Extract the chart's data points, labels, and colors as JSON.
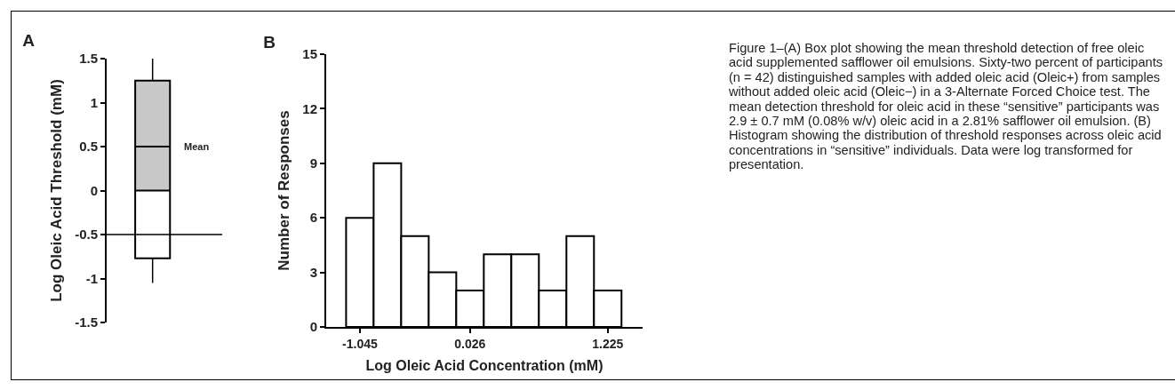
{
  "chart_data": [
    {
      "type": "box",
      "title": "A",
      "ylabel": "Log Oleic Acid Threshold (mM)",
      "categories": [
        null
      ],
      "series": [
        {
          "color": "#c8c8c8",
          "boxes": [
            {
              "low": -1.05,
              "q1": -0.77,
              "median": 0,
              "q3": 1.25,
              "high": 1.5,
              "mean": 0.5
            }
          ]
        }
      ],
      "ylim": [
        -1.5,
        1.5
      ],
      "yticks": [
        -1.5,
        -1,
        -0.5,
        0,
        0.5,
        1,
        1.5
      ],
      "ref_lines": [
        {
          "axis": "y",
          "value": -0.5
        }
      ],
      "annotations": [
        "Mean"
      ],
      "tick_labels": "y"
    },
    {
      "type": "bar",
      "title": "B",
      "xlabel": "Log Oleic Acid Concentration (mM)",
      "ylabel": "Number of Responses",
      "categories": [
        "-1.045",
        null,
        null,
        null,
        "0.026",
        null,
        null,
        null,
        null,
        "1.225"
      ],
      "values": [
        6,
        9,
        5,
        3,
        2,
        4,
        4,
        2,
        5,
        2
      ],
      "color": "#ffffff",
      "ylim": [
        0,
        15
      ],
      "yticks": [
        0,
        3,
        6,
        9,
        12,
        15
      ],
      "annotations": [
        "Figure 1–(A) Box plot showing the mean threshold detection of free oleic acid supplemented safflower oil emulsions. Sixty-two percent of participants (n = 42) distinguished samples with added oleic acid (Oleic+) from samples without added oleic acid (Oleic−) in a 3-Alternate Forced Choice test. The mean detection threshold for oleic acid in these “sensitive” participants was 2.9 ± 0.7 mM (0.08% w/v) oleic acid in a 2.81% safflower oil emulsion. (B) Histogram showing the distribution of threshold responses across oleic acid concentrations in “sensitive” individuals. Data were log transformed for presentation."
      ]
    }
  ]
}
